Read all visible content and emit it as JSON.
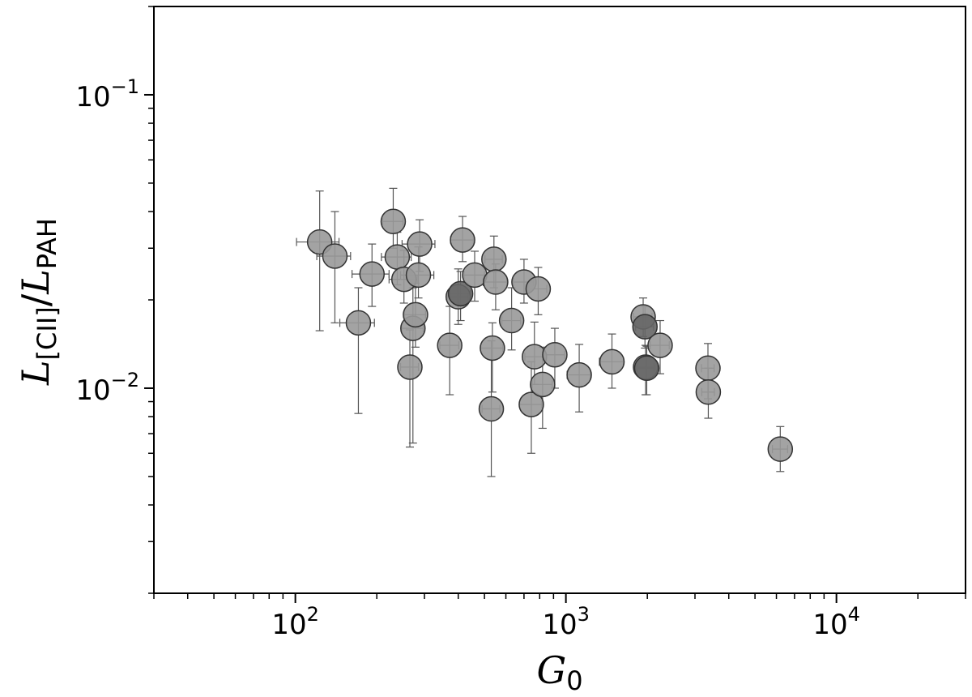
{
  "chart_data": {
    "type": "scatter",
    "title": "",
    "xlabel": {
      "main": "G",
      "sub": "0"
    },
    "ylabel": {
      "main1": "L",
      "sub1": "[CII]",
      "sep": "/",
      "main2": "L",
      "sub2": "PAH"
    },
    "x_scale": "log",
    "y_scale": "log",
    "xlim": [
      30,
      30000
    ],
    "ylim": [
      0.002,
      0.2
    ],
    "x_ticks": [
      {
        "value": 100,
        "base": "10",
        "exp": "2"
      },
      {
        "value": 1000,
        "base": "10",
        "exp": "3"
      },
      {
        "value": 10000,
        "base": "10",
        "exp": "4"
      }
    ],
    "y_ticks": [
      {
        "value": 0.01,
        "base": "10",
        "exp": "−2"
      },
      {
        "value": 0.1,
        "base": "10",
        "exp": "−1"
      }
    ],
    "grid": false,
    "legend": "none",
    "colors": {
      "marker_fill": "#999999",
      "marker_fill_dark": "#666666",
      "marker_edge": "#333333",
      "errorbar": "#555555"
    },
    "points": [
      {
        "x": 123,
        "y": 0.0315,
        "xerr": [
          22,
          22
        ],
        "yerr": [
          0.0158,
          0.0155
        ],
        "dark": false
      },
      {
        "x": 140,
        "y": 0.0282,
        "xerr": [
          20,
          20
        ],
        "yerr": [
          0.0115,
          0.0118
        ],
        "dark": false
      },
      {
        "x": 171,
        "y": 0.0167,
        "xerr": [
          25,
          25
        ],
        "yerr": [
          0.0085,
          0.0053
        ],
        "dark": false
      },
      {
        "x": 192,
        "y": 0.0245,
        "xerr": [
          30,
          30
        ],
        "yerr": [
          0.0055,
          0.0065
        ],
        "dark": false
      },
      {
        "x": 230,
        "y": 0.037,
        "xerr": [
          20,
          20
        ],
        "yerr": [
          0.007,
          0.011
        ],
        "dark": false
      },
      {
        "x": 238,
        "y": 0.028,
        "xerr": [
          30,
          30
        ],
        "yerr": [
          0.0055,
          0.006
        ],
        "dark": false
      },
      {
        "x": 252,
        "y": 0.0235,
        "xerr": [
          30,
          30
        ],
        "yerr": [
          0.004,
          0.006
        ],
        "dark": false
      },
      {
        "x": 265,
        "y": 0.0118,
        "xerr": [
          20,
          20
        ],
        "yerr": [
          0.0055,
          0.004
        ],
        "dark": false
      },
      {
        "x": 272,
        "y": 0.016,
        "xerr": [
          25,
          25
        ],
        "yerr": [
          0.0095,
          0.006
        ],
        "dark": false
      },
      {
        "x": 278,
        "y": 0.0178,
        "xerr": [
          25,
          25
        ],
        "yerr": [
          0.004,
          0.005
        ],
        "dark": false
      },
      {
        "x": 285,
        "y": 0.0243,
        "xerr": [
          40,
          40
        ],
        "yerr": [
          0.004,
          0.006
        ],
        "dark": false
      },
      {
        "x": 288,
        "y": 0.031,
        "xerr": [
          40,
          40
        ],
        "yerr": [
          0.006,
          0.0065
        ],
        "dark": false
      },
      {
        "x": 372,
        "y": 0.014,
        "xerr": [
          30,
          30
        ],
        "yerr": [
          0.0045,
          0.005
        ],
        "dark": false
      },
      {
        "x": 400,
        "y": 0.0205,
        "xerr": [
          35,
          35
        ],
        "yerr": [
          0.004,
          0.005
        ],
        "dark": false
      },
      {
        "x": 408,
        "y": 0.021,
        "xerr": [
          35,
          35
        ],
        "yerr": [
          0.004,
          0.004
        ],
        "dark": true
      },
      {
        "x": 415,
        "y": 0.032,
        "xerr": [
          40,
          40
        ],
        "yerr": [
          0.005,
          0.0065
        ],
        "dark": false
      },
      {
        "x": 460,
        "y": 0.0243,
        "xerr": [
          40,
          40
        ],
        "yerr": [
          0.0045,
          0.005
        ],
        "dark": false
      },
      {
        "x": 530,
        "y": 0.0085,
        "xerr": [
          40,
          40
        ],
        "yerr": [
          0.0035,
          0.006
        ],
        "dark": false
      },
      {
        "x": 535,
        "y": 0.0137,
        "xerr": [
          50,
          50
        ],
        "yerr": [
          0.004,
          0.003
        ],
        "dark": false
      },
      {
        "x": 542,
        "y": 0.0275,
        "xerr": [
          40,
          40
        ],
        "yerr": [
          0.0055,
          0.0055
        ],
        "dark": false
      },
      {
        "x": 550,
        "y": 0.023,
        "xerr": [
          55,
          55
        ],
        "yerr": [
          0.0045,
          0.0035
        ],
        "dark": false
      },
      {
        "x": 630,
        "y": 0.017,
        "xerr": [
          50,
          50
        ],
        "yerr": [
          0.0035,
          0.005
        ],
        "dark": false
      },
      {
        "x": 700,
        "y": 0.023,
        "xerr": [
          60,
          60
        ],
        "yerr": [
          0.0035,
          0.0045
        ],
        "dark": false
      },
      {
        "x": 745,
        "y": 0.0088,
        "xerr": [
          70,
          70
        ],
        "yerr": [
          0.0028,
          0.0035
        ],
        "dark": false
      },
      {
        "x": 765,
        "y": 0.0128,
        "xerr": [
          60,
          60
        ],
        "yerr": [
          0.0025,
          0.004
        ],
        "dark": false
      },
      {
        "x": 790,
        "y": 0.0218,
        "xerr": [
          60,
          60
        ],
        "yerr": [
          0.004,
          0.004
        ],
        "dark": false
      },
      {
        "x": 820,
        "y": 0.0103,
        "xerr": [
          70,
          70
        ],
        "yerr": [
          0.003,
          0.0035
        ],
        "dark": false
      },
      {
        "x": 910,
        "y": 0.013,
        "xerr": [
          80,
          80
        ],
        "yerr": [
          0.003,
          0.003
        ],
        "dark": false
      },
      {
        "x": 1120,
        "y": 0.0111,
        "xerr": [
          110,
          110
        ],
        "yerr": [
          0.0028,
          0.003
        ],
        "dark": false
      },
      {
        "x": 1480,
        "y": 0.0123,
        "xerr": [
          150,
          150
        ],
        "yerr": [
          0.0023,
          0.003
        ],
        "dark": false
      },
      {
        "x": 1930,
        "y": 0.0175,
        "xerr": [
          150,
          150
        ],
        "yerr": [
          0.0025,
          0.0028
        ],
        "dark": false
      },
      {
        "x": 1960,
        "y": 0.0162,
        "xerr": [
          150,
          150
        ],
        "yerr": [
          0.0025,
          0.0028
        ],
        "dark": true
      },
      {
        "x": 1970,
        "y": 0.0118,
        "xerr": [
          150,
          150
        ],
        "yerr": [
          0.0023,
          0.0022
        ],
        "dark": false
      },
      {
        "x": 1990,
        "y": 0.0117,
        "xerr": [
          150,
          150
        ],
        "yerr": [
          0.0022,
          0.0022
        ],
        "dark": true
      },
      {
        "x": 2230,
        "y": 0.014,
        "xerr": [
          180,
          180
        ],
        "yerr": [
          0.0028,
          0.003
        ],
        "dark": false
      },
      {
        "x": 3350,
        "y": 0.0117,
        "xerr": [
          180,
          180
        ],
        "yerr": [
          0.0025,
          0.0025
        ],
        "dark": false
      },
      {
        "x": 3360,
        "y": 0.0097,
        "xerr": [
          180,
          180
        ],
        "yerr": [
          0.0018,
          0.002
        ],
        "dark": false
      },
      {
        "x": 6200,
        "y": 0.0062,
        "xerr": [
          400,
          400
        ],
        "yerr": [
          0.001,
          0.0012
        ],
        "dark": false
      }
    ]
  }
}
